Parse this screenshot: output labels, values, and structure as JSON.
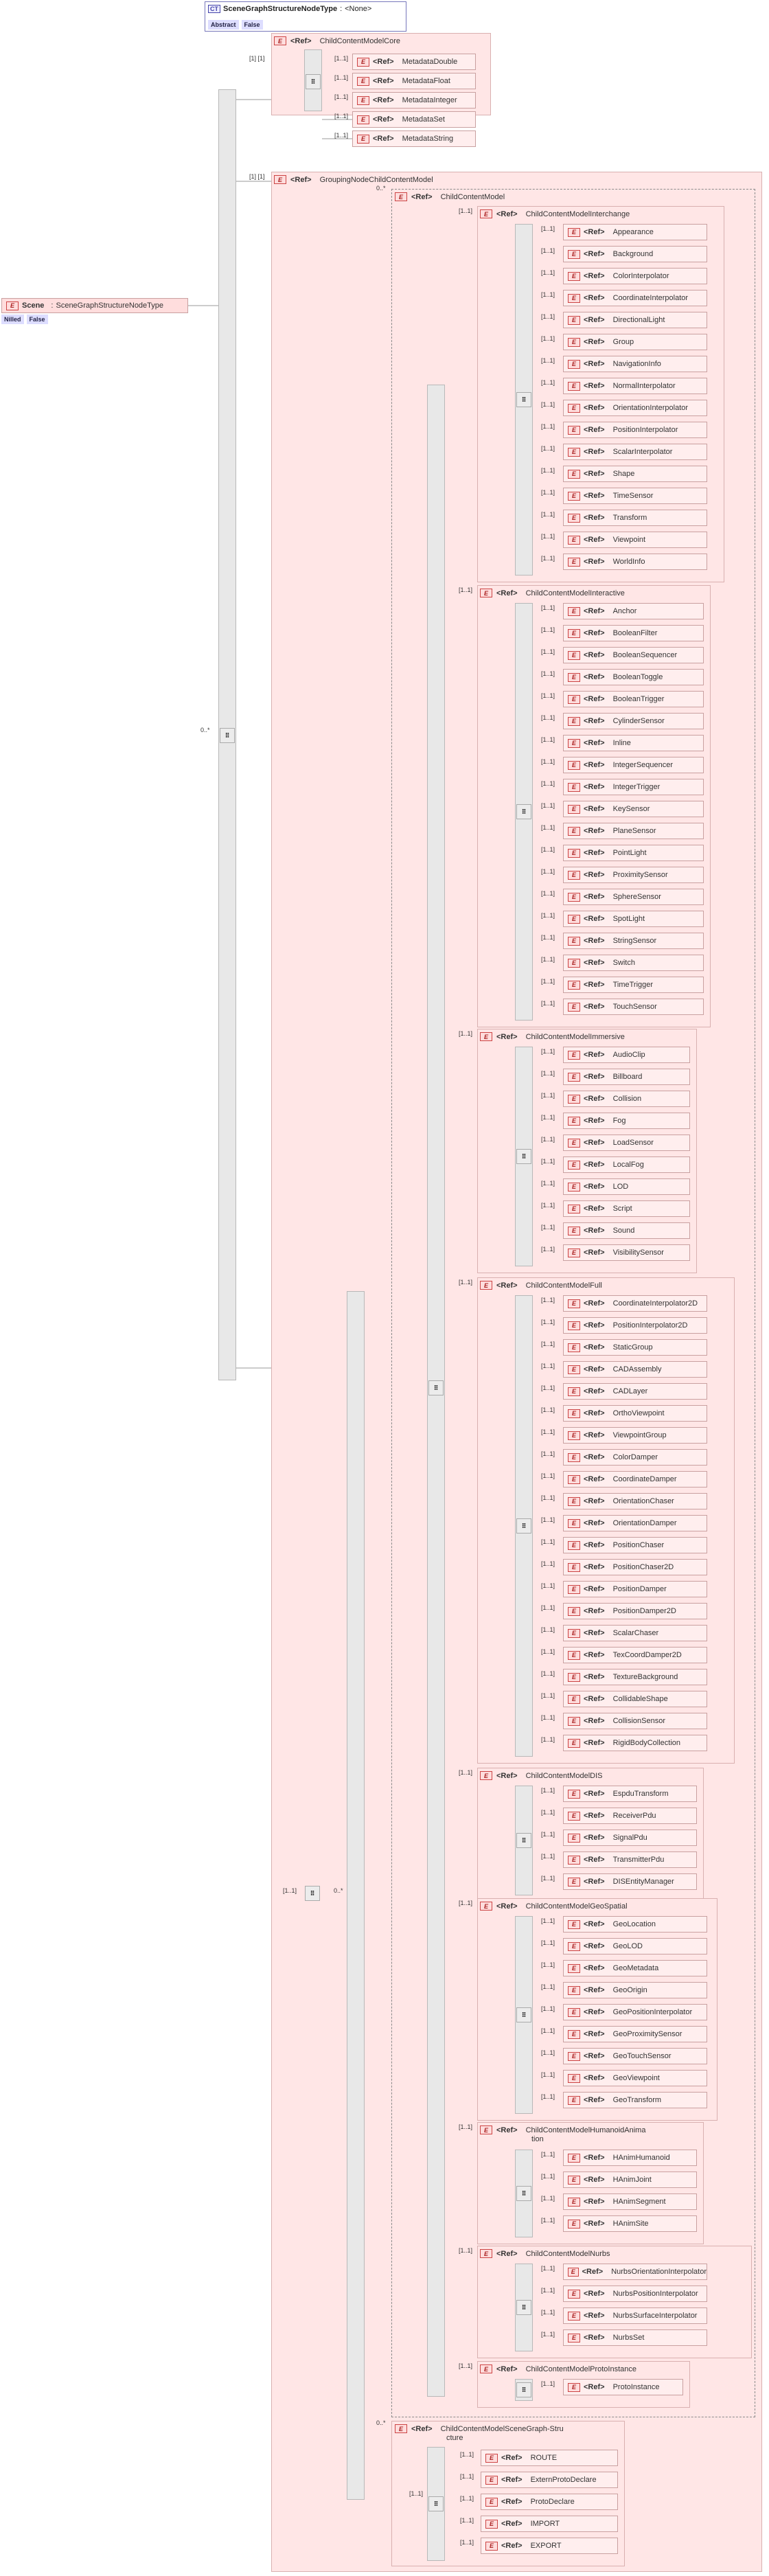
{
  "complex_type": {
    "badge": "CT",
    "name": "SceneGraphStructureNodeType",
    "sep": ":",
    "base": "<None>",
    "abstract_label": "Abstract",
    "abstract_value": "False"
  },
  "scene": {
    "badge": "E",
    "name": "Scene",
    "sep": ":",
    "type": "SceneGraphStructureNodeType",
    "nilled_label": "Nilled",
    "nilled_value": "False"
  },
  "ref": "<Ref>",
  "e": "E",
  "card_many": "0..*",
  "card_one": "[1..1]",
  "core_group": {
    "name": "ChildContentModelCore",
    "card": "[1] [1]",
    "items": [
      "MetadataDouble",
      "MetadataFloat",
      "MetadataInteger",
      "MetadataSet",
      "MetadataString"
    ]
  },
  "grouping_group": {
    "name": "GroupingNodeChildContentModel",
    "card": "[1] [1]"
  },
  "child_content": {
    "name": "ChildContentModel",
    "card": "0..*"
  },
  "groups": [
    {
      "name": "ChildContentModelInterchange",
      "items": [
        "Appearance",
        "Background",
        "ColorInterpolator",
        "CoordinateInterpolator",
        "DirectionalLight",
        "Group",
        "NavigationInfo",
        "NormalInterpolator",
        "OrientationInterpolator",
        "PositionInterpolator",
        "ScalarInterpolator",
        "Shape",
        "TimeSensor",
        "Transform",
        "Viewpoint",
        "WorldInfo"
      ]
    },
    {
      "name": "ChildContentModelInteractive",
      "items": [
        "Anchor",
        "BooleanFilter",
        "BooleanSequencer",
        "BooleanToggle",
        "BooleanTrigger",
        "CylinderSensor",
        "Inline",
        "IntegerSequencer",
        "IntegerTrigger",
        "KeySensor",
        "PlaneSensor",
        "PointLight",
        "ProximitySensor",
        "SphereSensor",
        "SpotLight",
        "StringSensor",
        "Switch",
        "TimeTrigger",
        "TouchSensor"
      ]
    },
    {
      "name": "ChildContentModelImmersive",
      "items": [
        "AudioClip",
        "Billboard",
        "Collision",
        "Fog",
        "LoadSensor",
        "LocalFog",
        "LOD",
        "Script",
        "Sound",
        "VisibilitySensor"
      ]
    },
    {
      "name": "ChildContentModelFull",
      "items": [
        "CoordinateInterpolator2D",
        "PositionInterpolator2D",
        "StaticGroup",
        "CADAssembly",
        "CADLayer",
        "OrthoViewpoint",
        "ViewpointGroup",
        "ColorDamper",
        "CoordinateDamper",
        "OrientationChaser",
        "OrientationDamper",
        "PositionChaser",
        "PositionChaser2D",
        "PositionDamper",
        "PositionDamper2D",
        "ScalarChaser",
        "TexCoordDamper2D",
        "TextureBackground",
        "CollidableShape",
        "CollisionSensor",
        "RigidBodyCollection"
      ]
    },
    {
      "name": "ChildContentModelDIS",
      "items": [
        "EspduTransform",
        "ReceiverPdu",
        "SignalPdu",
        "TransmitterPdu",
        "DISEntityManager"
      ]
    },
    {
      "name": "ChildContentModelGeoSpatial",
      "items": [
        "GeoLocation",
        "GeoLOD",
        "GeoMetadata",
        "GeoOrigin",
        "GeoPositionInterpolator",
        "GeoProximitySensor",
        "GeoTouchSensor",
        "GeoViewpoint",
        "GeoTransform"
      ]
    },
    {
      "name": "ChildContentModelHumanoidAnimation",
      "name_line1": "ChildContentModelHumanoidAnima",
      "name_line2": "tion",
      "items": [
        "HAnimHumanoid",
        "HAnimJoint",
        "HAnimSegment",
        "HAnimSite"
      ]
    },
    {
      "name": "ChildContentModelNurbs",
      "items": [
        "NurbsOrientationInterpolator",
        "NurbsPositionInterpolator",
        "NurbsSurfaceInterpolator",
        "NurbsSet"
      ]
    },
    {
      "name": "ChildContentModelProtoInstance",
      "items": [
        "ProtoInstance"
      ]
    }
  ],
  "scene_graph_group": {
    "name": "ChildContentModelSceneGraphStructure",
    "name_line1": "ChildContentModelSceneGraph-Stru",
    "name_line2": "cture",
    "card": "0..*",
    "items": [
      "ROUTE",
      "ExternProtoDeclare",
      "ProtoDeclare",
      "IMPORT",
      "EXPORT"
    ]
  }
}
